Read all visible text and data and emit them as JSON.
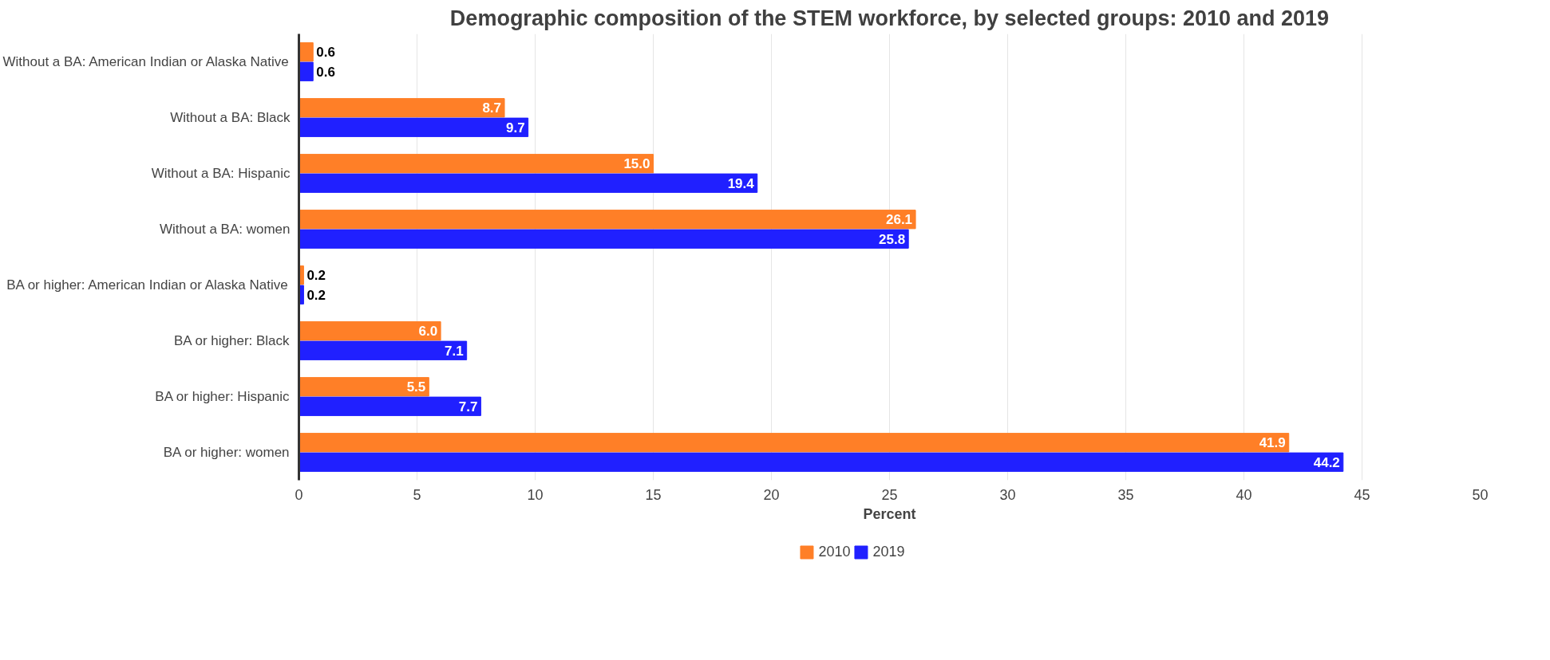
{
  "chart_data": {
    "type": "bar",
    "orientation": "horizontal",
    "title": "Demographic composition of the STEM workforce, by selected groups: 2010 and 2019",
    "xlabel": "Percent",
    "categories": [
      "Without a BA: American Indian or Alaska Native",
      "Without a BA: Black",
      "Without a BA: Hispanic",
      "Without a BA: women",
      "BA or higher: American Indian or Alaska Native",
      "BA or higher: Black",
      "BA or higher: Hispanic",
      "BA or higher: women"
    ],
    "series": [
      {
        "name": "2010",
        "color": "#ff7f27",
        "values": [
          0.6,
          8.7,
          15.0,
          26.1,
          0.2,
          6.0,
          5.5,
          41.9
        ],
        "value_labels": [
          "0.6",
          "8.7",
          "15.0",
          "26.1",
          "0.2",
          "6.0",
          "5.5",
          "41.9"
        ]
      },
      {
        "name": "2019",
        "color": "#2020ff",
        "values": [
          0.6,
          9.7,
          19.4,
          25.8,
          0.2,
          7.1,
          7.7,
          44.2
        ],
        "value_labels": [
          "0.6",
          "9.7",
          "19.4",
          "25.8",
          "0.2",
          "7.1",
          "7.7",
          "44.2"
        ]
      }
    ],
    "xlim": [
      0,
      50
    ],
    "xticks": [
      0,
      5,
      10,
      15,
      20,
      25,
      30,
      35,
      40,
      45,
      50
    ],
    "grid": "x",
    "legend": "bottom"
  }
}
